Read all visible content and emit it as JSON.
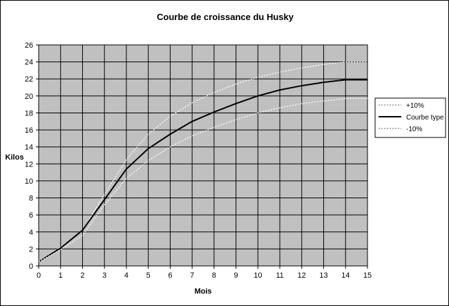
{
  "chart_data": {
    "type": "line",
    "title": "Courbe de croissance du Husky",
    "xlabel": "Mois",
    "ylabel": "Kilos",
    "xlim": [
      0,
      15
    ],
    "ylim": [
      0,
      26
    ],
    "x_ticks": [
      "0",
      "1",
      "2",
      "3",
      "4",
      "5",
      "6",
      "7",
      "8",
      "9",
      "10",
      "11",
      "12",
      "13",
      "14",
      "15"
    ],
    "y_ticks": [
      "0",
      "2",
      "4",
      "6",
      "8",
      "10",
      "12",
      "14",
      "16",
      "18",
      "20",
      "22",
      "24",
      "26"
    ],
    "grid": true,
    "plot_background": "#c0c0c0",
    "legend_position": "right",
    "x": [
      0,
      1,
      2,
      3,
      4,
      5,
      6,
      7,
      8,
      9,
      10,
      11,
      12,
      13,
      14,
      15
    ],
    "series": [
      {
        "name": "+10%",
        "style": "dotted",
        "color": "#ffffff",
        "values": [
          0.6,
          2.2,
          4.2,
          8.4,
          12.5,
          15.5,
          17.6,
          19.2,
          20.4,
          21.4,
          22.2,
          22.8,
          23.3,
          23.7,
          24.0,
          24.0
        ]
      },
      {
        "name": "Courbe type",
        "style": "solid",
        "color": "#000000",
        "values": [
          0.5,
          2.1,
          4.2,
          7.8,
          11.4,
          13.8,
          15.5,
          17.0,
          18.1,
          19.1,
          20.0,
          20.7,
          21.2,
          21.6,
          21.9,
          21.9
        ]
      },
      {
        "name": "-10%",
        "style": "dotted",
        "color": "#ffffff",
        "values": [
          0.5,
          1.9,
          3.6,
          7.2,
          10.3,
          12.4,
          14.0,
          15.3,
          16.3,
          17.2,
          18.0,
          18.6,
          19.1,
          19.4,
          19.7,
          19.7
        ]
      }
    ]
  }
}
